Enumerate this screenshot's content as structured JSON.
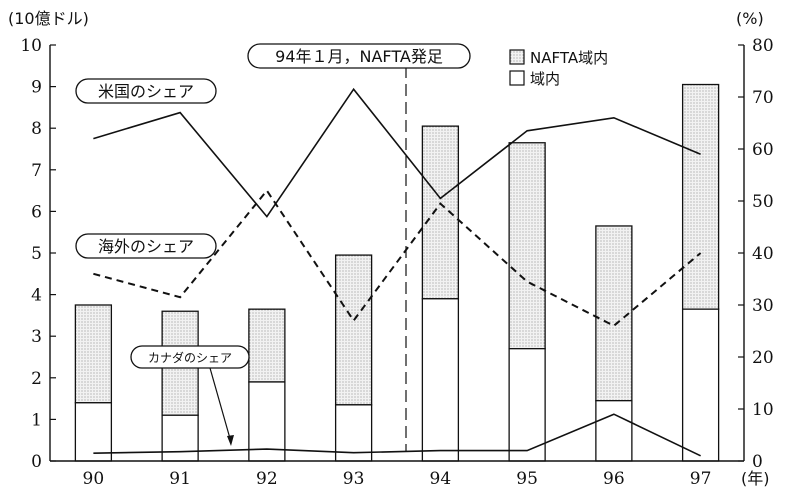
{
  "chart_data": {
    "type": "bar",
    "categories": [
      "90",
      "91",
      "92",
      "93",
      "94",
      "95",
      "96",
      "97"
    ],
    "x_unit": "(年)",
    "y_left_unit": "(10億ドル)",
    "y_right_unit": "(%)",
    "ylim_left": [
      0,
      10
    ],
    "ylim_right": [
      0,
      80
    ],
    "yticks_left": [
      "0",
      "1",
      "2",
      "3",
      "4",
      "5",
      "6",
      "7",
      "8",
      "9",
      "10"
    ],
    "yticks_right": [
      "0",
      "10",
      "20",
      "30",
      "40",
      "50",
      "60",
      "70",
      "80"
    ],
    "series": [
      {
        "name": "域内",
        "axis": "left",
        "kind": "stacked-bar",
        "values": [
          1.4,
          1.1,
          1.9,
          1.35,
          3.9,
          2.7,
          1.45,
          3.65
        ]
      },
      {
        "name": "NAFTA域内",
        "axis": "left",
        "kind": "stacked-bar",
        "values": [
          3.75,
          3.6,
          3.65,
          4.95,
          8.05,
          7.65,
          5.65,
          9.05
        ]
      },
      {
        "name": "米国のシェア",
        "axis": "right",
        "kind": "line",
        "values": [
          62,
          67,
          47,
          71.5,
          50.5,
          63.5,
          66,
          59
        ]
      },
      {
        "name": "海外のシェア",
        "axis": "right",
        "kind": "line-dashed",
        "values": [
          36,
          31.5,
          52,
          27,
          49.5,
          34.5,
          26,
          40
        ]
      },
      {
        "name": "カナダのシェア",
        "axis": "right",
        "kind": "line",
        "values": [
          1.5,
          1.8,
          2.3,
          1.6,
          2,
          2,
          9,
          1
        ]
      }
    ],
    "annotations": [
      {
        "text": "94年１月，NAFTA発足",
        "x_between": [
          "93",
          "94"
        ]
      }
    ],
    "grid": false,
    "legend_position": "top-right"
  },
  "labels": {
    "us_share": "米国のシェア",
    "overseas_share": "海外のシェア",
    "canada_share": "カナダのシェア",
    "nafta_event": "94年１月，NAFTA発足",
    "legend_nafta": "NAFTA域内",
    "legend_domestic": "域内"
  }
}
